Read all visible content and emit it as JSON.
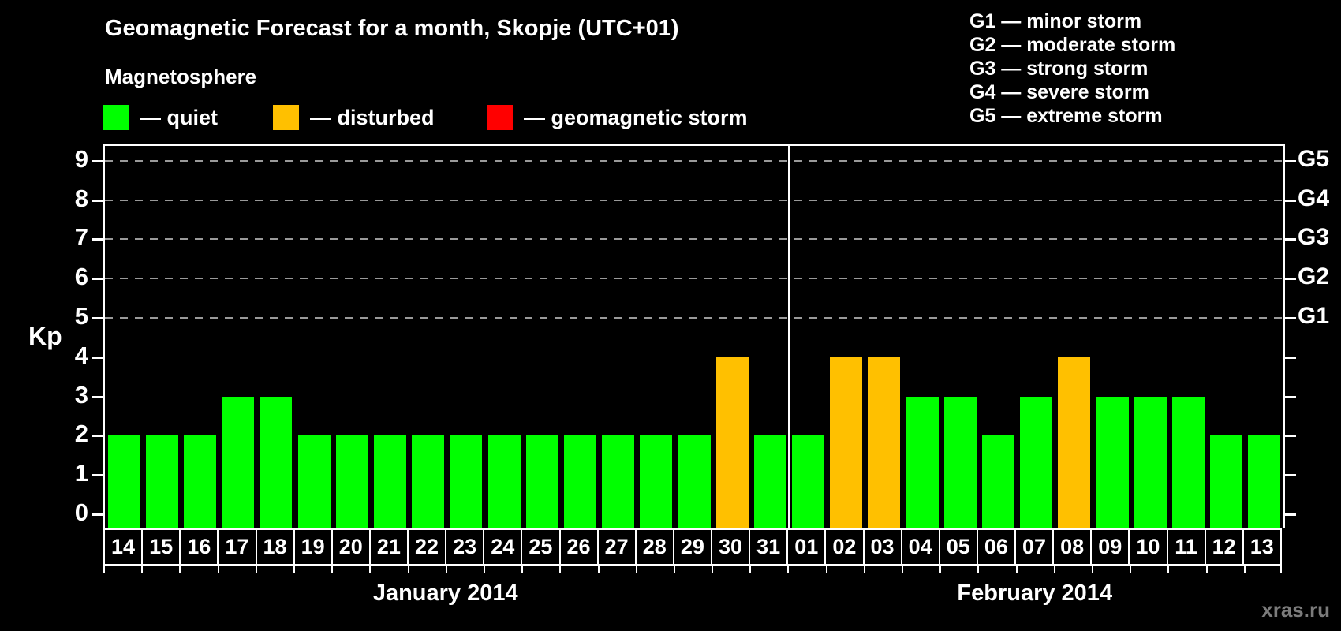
{
  "title": "Geomagnetic Forecast for a month, Skopje (UTC+01)",
  "magnetosphere_heading": "Magnetosphere",
  "legend": {
    "items": [
      {
        "key": "quiet",
        "label": "— quiet"
      },
      {
        "key": "disturbed",
        "label": "— disturbed"
      },
      {
        "key": "storm",
        "label": "— geomagnetic storm"
      }
    ]
  },
  "g_scale": [
    {
      "text": "G1 — minor storm"
    },
    {
      "text": "G2 — moderate storm"
    },
    {
      "text": "G3 — strong storm"
    },
    {
      "text": "G4 — severe storm"
    },
    {
      "text": "G5 — extreme storm"
    }
  ],
  "watermark": "xras.ru",
  "colors": {
    "quiet": "#00FF00",
    "disturbed": "#FFC000",
    "storm": "#FF0000",
    "grid": "#9A9A9A",
    "axis": "#FFFFFF",
    "watermark": "#7B7B7B"
  },
  "chart_data": {
    "type": "bar",
    "ylabel": "Kp",
    "ylim": [
      0,
      9
    ],
    "y_ticks": [
      0,
      1,
      2,
      3,
      4,
      5,
      6,
      7,
      8,
      9
    ],
    "gridlines_at": [
      5,
      6,
      7,
      8,
      9
    ],
    "grid": "dashed",
    "right_axis": [
      {
        "kp": 5,
        "label": "G1"
      },
      {
        "kp": 6,
        "label": "G2"
      },
      {
        "kp": 7,
        "label": "G3"
      },
      {
        "kp": 8,
        "label": "G4"
      },
      {
        "kp": 9,
        "label": "G5"
      }
    ],
    "months": [
      {
        "label": "January 2014",
        "days": [
          {
            "day": "14",
            "kp": 2,
            "state": "quiet"
          },
          {
            "day": "15",
            "kp": 2,
            "state": "quiet"
          },
          {
            "day": "16",
            "kp": 2,
            "state": "quiet"
          },
          {
            "day": "17",
            "kp": 3,
            "state": "quiet"
          },
          {
            "day": "18",
            "kp": 3,
            "state": "quiet"
          },
          {
            "day": "19",
            "kp": 2,
            "state": "quiet"
          },
          {
            "day": "20",
            "kp": 2,
            "state": "quiet"
          },
          {
            "day": "21",
            "kp": 2,
            "state": "quiet"
          },
          {
            "day": "22",
            "kp": 2,
            "state": "quiet"
          },
          {
            "day": "23",
            "kp": 2,
            "state": "quiet"
          },
          {
            "day": "24",
            "kp": 2,
            "state": "quiet"
          },
          {
            "day": "25",
            "kp": 2,
            "state": "quiet"
          },
          {
            "day": "26",
            "kp": 2,
            "state": "quiet"
          },
          {
            "day": "27",
            "kp": 2,
            "state": "quiet"
          },
          {
            "day": "28",
            "kp": 2,
            "state": "quiet"
          },
          {
            "day": "29",
            "kp": 2,
            "state": "quiet"
          },
          {
            "day": "30",
            "kp": 4,
            "state": "disturbed"
          },
          {
            "day": "31",
            "kp": 2,
            "state": "quiet"
          }
        ]
      },
      {
        "label": "February 2014",
        "days": [
          {
            "day": "01",
            "kp": 2,
            "state": "quiet"
          },
          {
            "day": "02",
            "kp": 4,
            "state": "disturbed"
          },
          {
            "day": "03",
            "kp": 4,
            "state": "disturbed"
          },
          {
            "day": "04",
            "kp": 3,
            "state": "quiet"
          },
          {
            "day": "05",
            "kp": 3,
            "state": "quiet"
          },
          {
            "day": "06",
            "kp": 2,
            "state": "quiet"
          },
          {
            "day": "07",
            "kp": 3,
            "state": "quiet"
          },
          {
            "day": "08",
            "kp": 4,
            "state": "disturbed"
          },
          {
            "day": "09",
            "kp": 3,
            "state": "quiet"
          },
          {
            "day": "10",
            "kp": 3,
            "state": "quiet"
          },
          {
            "day": "11",
            "kp": 3,
            "state": "quiet"
          },
          {
            "day": "12",
            "kp": 2,
            "state": "quiet"
          },
          {
            "day": "13",
            "kp": 2,
            "state": "quiet"
          }
        ]
      }
    ]
  }
}
